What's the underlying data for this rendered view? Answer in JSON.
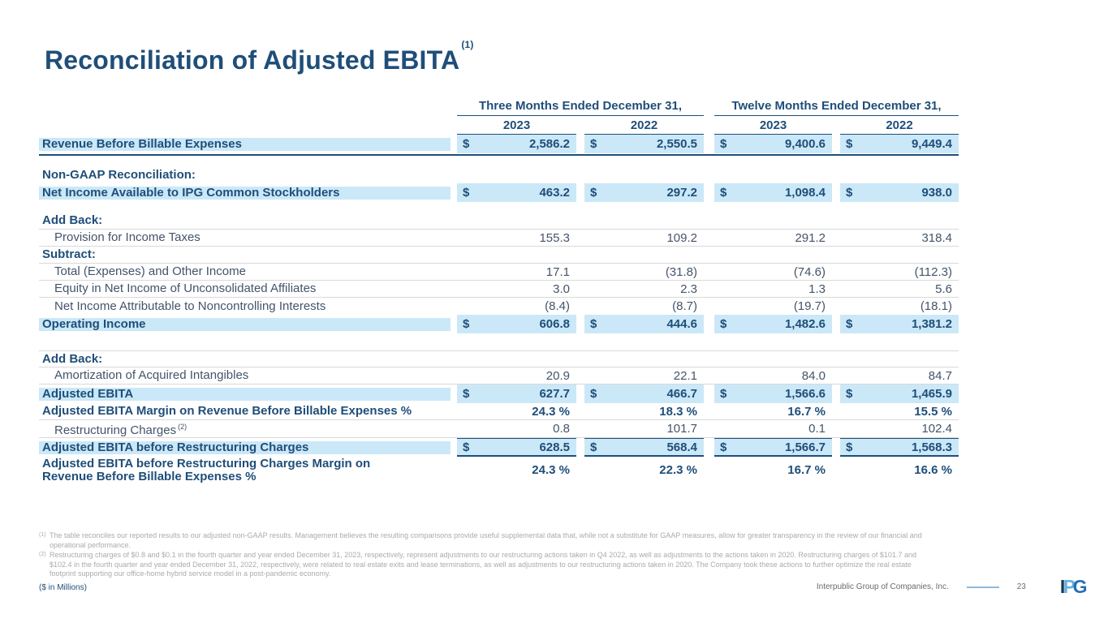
{
  "slide": {
    "title": "Reconciliation of Adjusted EBITA",
    "title_sup": "(1)",
    "units_label": "($ in Millions)",
    "company_name": "Interpublic Group of Companies, Inc.",
    "page_number": "23",
    "logo": {
      "l1": "I",
      "l2": "P",
      "l3": "G"
    },
    "colors": {
      "navy": "#1F4E79",
      "highlight": "#CBE8F8",
      "slate": "#44546A",
      "footnote_gray": "#ABABAB"
    }
  },
  "table": {
    "currency": "$",
    "col_groups": [
      "Three Months Ended December 31,",
      "Twelve Months Ended December 31,"
    ],
    "years": [
      "2023",
      "2022",
      "2023",
      "2022"
    ],
    "rows": [
      {
        "label": "Revenue Before Billable Expenses",
        "values": [
          "2,586.2",
          "2,550.5",
          "9,400.6",
          "9,449.4"
        ]
      },
      {
        "label": "Non-GAAP Reconciliation:"
      },
      {
        "label": "Net Income Available to IPG Common Stockholders",
        "values": [
          "463.2",
          "297.2",
          "1,098.4",
          "938.0"
        ]
      },
      {
        "label": "Add Back:"
      },
      {
        "label": "Provision for Income Taxes",
        "values": [
          "155.3",
          "109.2",
          "291.2",
          "318.4"
        ]
      },
      {
        "label": "Subtract:"
      },
      {
        "label": "Total (Expenses) and Other Income",
        "values": [
          "17.1",
          "(31.8)",
          "(74.6)",
          "(112.3)"
        ]
      },
      {
        "label": "Equity in Net Income of Unconsolidated Affiliates",
        "values": [
          "3.0",
          "2.3",
          "1.3",
          "5.6"
        ]
      },
      {
        "label": "Net Income Attributable to Noncontrolling Interests",
        "values": [
          "(8.4)",
          "(8.7)",
          "(19.7)",
          "(18.1)"
        ]
      },
      {
        "label": "Operating Income",
        "values": [
          "606.8",
          "444.6",
          "1,482.6",
          "1,381.2"
        ]
      },
      {
        "label": "Add Back:"
      },
      {
        "label": "Amortization of Acquired Intangibles",
        "values": [
          "20.9",
          "22.1",
          "84.0",
          "84.7"
        ]
      },
      {
        "label": "Adjusted EBITA",
        "values": [
          "627.7",
          "466.7",
          "1,566.6",
          "1,465.9"
        ]
      },
      {
        "label": "Adjusted EBITA Margin on Revenue Before Billable Expenses %",
        "values": [
          "24.3 %",
          "18.3 %",
          "16.7 %",
          "15.5 %"
        ]
      },
      {
        "label": "Restructuring Charges",
        "sup": "(2)",
        "values": [
          "0.8",
          "101.7",
          "0.1",
          "102.4"
        ]
      },
      {
        "label": "Adjusted EBITA before Restructuring Charges",
        "values": [
          "628.5",
          "568.4",
          "1,566.7",
          "1,568.3"
        ]
      },
      {
        "label": "Adjusted EBITA before Restructuring Charges Margin on Revenue Before Billable Expenses %",
        "values": [
          "24.3 %",
          "22.3 %",
          "16.7 %",
          "16.6 %"
        ]
      }
    ]
  },
  "footnotes": [
    {
      "marker": "(1)",
      "text": "The table reconciles our reported results to our adjusted non-GAAP results. Management believes the resulting comparisons provide useful supplemental data that, while not a substitute for GAAP measures, allow for greater transparency in the review of our financial and operational performance."
    },
    {
      "marker": "(2)",
      "text": "Restructuring charges of $0.8 and $0.1 in the fourth quarter and year ended December 31, 2023, respectively, represent adjustments to our restructuring actions taken in Q4 2022, as well as adjustments to the actions taken in 2020. Restructuring charges of $101.7 and $102.4 in the fourth quarter and year ended December 31, 2022, respectively, were related to real estate exits and lease terminations, as well as adjustments to our restructuring actions taken in 2020. The Company took these actions to further optimize the real estate footprint supporting our office-home hybrid service model in a post-pandemic economy."
    }
  ]
}
